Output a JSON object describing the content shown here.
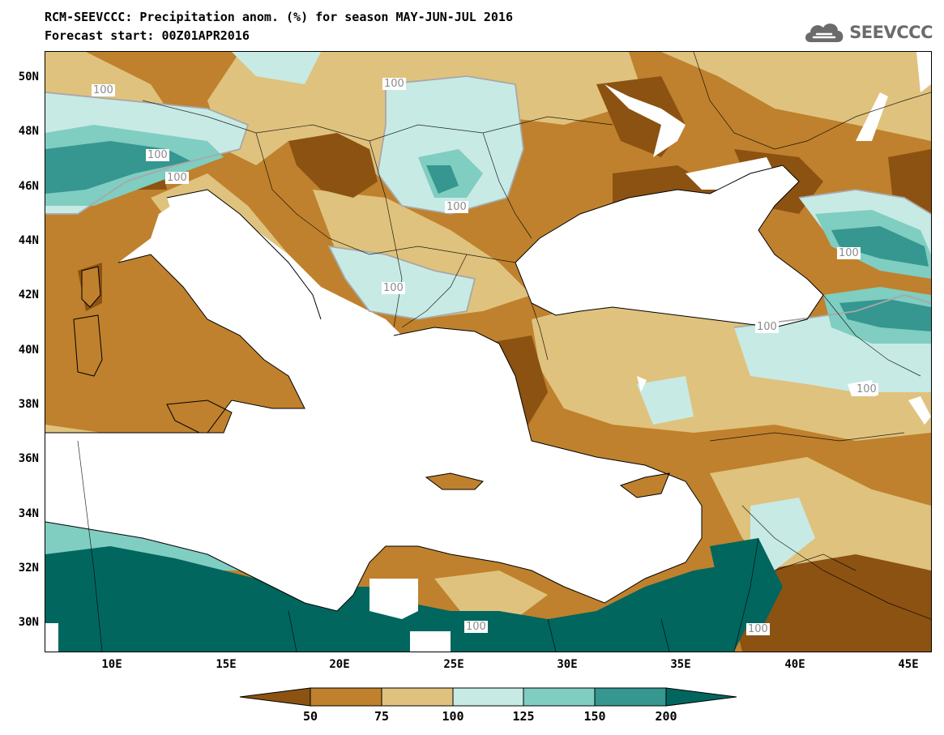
{
  "header": {
    "title": "RCM-SEEVCCC: Precipitation anom. (%) for season MAY-JUN-JUL 2016",
    "subtitle": "Forecast start: 00Z01APR2016",
    "logo_text": "SEEVCCC",
    "logo_icon": "cloud-logo-icon"
  },
  "map": {
    "lon_range": [
      7,
      46
    ],
    "lat_range": [
      29,
      51
    ],
    "lat_labels": [
      "50N",
      "48N",
      "46N",
      "44N",
      "42N",
      "40N",
      "38N",
      "36N",
      "34N",
      "32N",
      "30N"
    ],
    "lon_labels": [
      "10E",
      "15E",
      "20E",
      "25E",
      "30E",
      "35E",
      "40E",
      "45E"
    ],
    "contour_labels": [
      {
        "text": "100",
        "lon": 9.7,
        "lat": 50.5
      },
      {
        "text": "100",
        "lon": 22.2,
        "lat": 50.8
      },
      {
        "text": "100",
        "lon": 11.9,
        "lat": 47.3
      },
      {
        "text": "100",
        "lon": 12.8,
        "lat": 46.5
      },
      {
        "text": "100",
        "lon": 25.0,
        "lat": 45.1
      },
      {
        "text": "100",
        "lon": 22.2,
        "lat": 42.3
      },
      {
        "text": "100",
        "lon": 39.3,
        "lat": 43.6
      },
      {
        "text": "100",
        "lon": 38.3,
        "lat": 40.9
      },
      {
        "text": "100",
        "lon": 42.3,
        "lat": 38.6
      },
      {
        "text": "100",
        "lon": 25.9,
        "lat": 29.9
      },
      {
        "text": "100",
        "lon": 38.1,
        "lat": 29.8
      }
    ],
    "colors": {
      "below_50": "#8c5212",
      "50_75": "#bf812d",
      "75_100": "#dfc27d",
      "100_125": "#c7eae5",
      "125_150": "#80cdc1",
      "150_200": "#35978f",
      "above_200": "#01665e",
      "sea": "#ffffff"
    }
  },
  "colorbar": {
    "labels": [
      "50",
      "75",
      "100",
      "125",
      "150",
      "200"
    ],
    "colors": [
      "#8c5212",
      "#bf812d",
      "#dfc27d",
      "#c7eae5",
      "#80cdc1",
      "#35978f",
      "#01665e"
    ]
  }
}
